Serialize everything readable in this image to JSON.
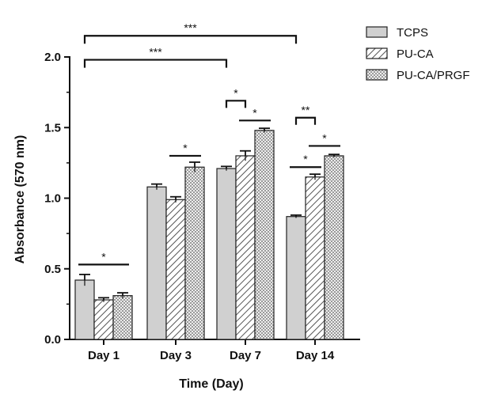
{
  "chart_data": {
    "type": "bar",
    "xlabel": "Time (Day)",
    "ylabel": "Absorbance (570 nm)",
    "ylim": [
      0,
      2.0
    ],
    "yticks": [
      "0.0",
      "0.5",
      "1.0",
      "1.5",
      "2.0"
    ],
    "categories": [
      "Day 1",
      "Day 3",
      "Day 7",
      "Day 14"
    ],
    "legend_position": "top-right",
    "series": [
      {
        "name": "TCPS",
        "values": [
          0.42,
          1.08,
          1.21,
          0.87
        ],
        "errors": [
          0.04,
          0.02,
          0.015,
          0.01
        ],
        "pattern": "solid",
        "color": "#d0d0d0"
      },
      {
        "name": "PU-CA",
        "values": [
          0.28,
          0.99,
          1.3,
          1.15
        ],
        "errors": [
          0.015,
          0.02,
          0.035,
          0.02
        ],
        "pattern": "hatch",
        "color": "#ffffff"
      },
      {
        "name": "PU-CA/PRGF",
        "values": [
          0.31,
          1.22,
          1.48,
          1.3
        ],
        "errors": [
          0.02,
          0.035,
          0.015,
          0.01
        ],
        "pattern": "crosshatch",
        "color": "#bdbdbd"
      }
    ],
    "significance": [
      {
        "label": "***",
        "type": "bracket",
        "from": [
          0,
          0
        ],
        "to": [
          3,
          0
        ],
        "y": 2.15
      },
      {
        "label": "***",
        "type": "bracket",
        "from": [
          0,
          0
        ],
        "to": [
          2,
          0
        ],
        "y": 1.98
      },
      {
        "label": "*",
        "type": "line",
        "from": [
          0,
          0
        ],
        "to": [
          0,
          2
        ],
        "y": 0.53
      },
      {
        "label": "*",
        "type": "line",
        "from": [
          1,
          1
        ],
        "to": [
          1,
          2
        ],
        "y": 1.3
      },
      {
        "label": "*",
        "type": "bracket",
        "from": [
          2,
          0
        ],
        "to": [
          2,
          1
        ],
        "y": 1.69
      },
      {
        "label": "*",
        "type": "line",
        "from": [
          2,
          1
        ],
        "to": [
          2,
          2
        ],
        "y": 1.55
      },
      {
        "label": "**",
        "type": "bracket",
        "from": [
          3,
          0
        ],
        "to": [
          3,
          1
        ],
        "y": 1.57
      },
      {
        "label": "*",
        "type": "line",
        "from": [
          3,
          0
        ],
        "to": [
          3,
          1
        ],
        "y": 1.22
      },
      {
        "label": "*",
        "type": "line",
        "from": [
          3,
          1
        ],
        "to": [
          3,
          2
        ],
        "y": 1.37
      }
    ]
  }
}
